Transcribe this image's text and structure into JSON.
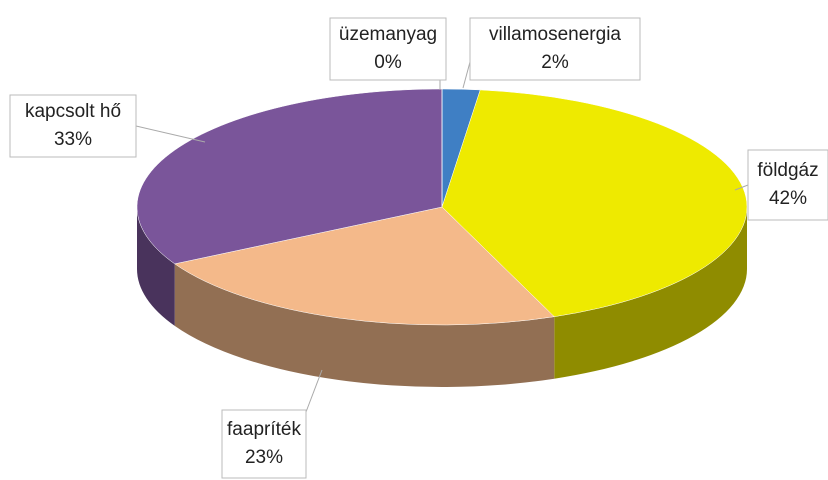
{
  "chart_data": {
    "type": "pie",
    "categories": [
      "villamosenergia",
      "földgáz",
      "faapríték",
      "kapcsolt hő",
      "üzemanyag"
    ],
    "values": [
      2,
      42,
      23,
      33,
      0
    ],
    "value_labels": [
      "2%",
      "42%",
      "23%",
      "33%",
      "0%"
    ],
    "colors": [
      "#3f7fc4",
      "#eeea00",
      "#f4b98a",
      "#7a559a",
      "#8c8c8c"
    ]
  }
}
